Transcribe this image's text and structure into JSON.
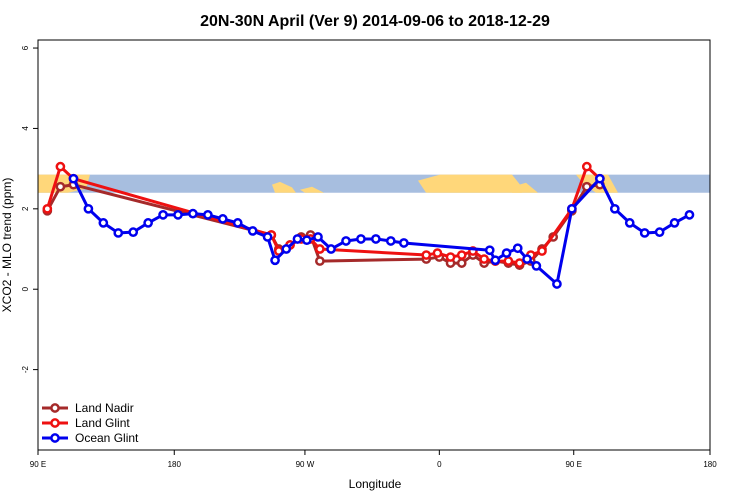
{
  "chart_data": {
    "type": "line",
    "title": "20N-30N April (Ver 9)   2014-09-06 to 2018-12-29",
    "xlabel": "Longitude",
    "ylabel": "XCO2 - MLO trend (ppm)",
    "xlim": [
      -90,
      270
    ],
    "ylim": [
      -4,
      6.2
    ],
    "x_ticks": [
      {
        "value": -90,
        "label": "90 E"
      },
      {
        "value": -17,
        "label": "180"
      },
      {
        "value": 53,
        "label": "90 W"
      },
      {
        "value": 125,
        "label": "0"
      },
      {
        "value": 197,
        "label": "90 E"
      },
      {
        "value": 270,
        "label": "180"
      }
    ],
    "y_ticks": [
      {
        "value": -2,
        "label": "-2"
      },
      {
        "value": 0,
        "label": "0"
      },
      {
        "value": 2,
        "label": "2"
      },
      {
        "value": 4,
        "label": "4"
      },
      {
        "value": 6,
        "label": "6"
      }
    ],
    "legend_position": "bottom-left",
    "map_band": {
      "y_top": 2.85,
      "y_bottom": 2.4,
      "ocean_color": "#A7BEDF",
      "land_color": "#FFD77A"
    },
    "series": [
      {
        "name": "Land Nadir",
        "color": "#A52A2A",
        "points": [
          [
            -85,
            1.95
          ],
          [
            -78,
            2.55
          ],
          [
            -71,
            2.6
          ],
          [
            35,
            1.35
          ],
          [
            39,
            1.0
          ],
          [
            45,
            1.1
          ],
          [
            51,
            1.3
          ],
          [
            56,
            1.35
          ],
          [
            61,
            0.7
          ],
          [
            118,
            0.75
          ],
          [
            125,
            0.8
          ],
          [
            131,
            0.65
          ],
          [
            137,
            0.65
          ],
          [
            143,
            0.85
          ],
          [
            149,
            0.65
          ],
          [
            155,
            0.7
          ],
          [
            162,
            0.65
          ],
          [
            168,
            0.6
          ],
          [
            174,
            0.7
          ],
          [
            180,
            1.0
          ],
          [
            186,
            1.3
          ],
          [
            196,
            1.95
          ],
          [
            204,
            2.55
          ],
          [
            211,
            2.6
          ]
        ]
      },
      {
        "name": "Land Glint",
        "color": "#EE1111",
        "points": [
          [
            -85,
            2.0
          ],
          [
            -78,
            3.05
          ],
          [
            -71,
            2.75
          ],
          [
            35,
            1.35
          ],
          [
            39,
            0.95
          ],
          [
            45,
            1.1
          ],
          [
            51,
            1.25
          ],
          [
            56,
            1.25
          ],
          [
            61,
            1.0
          ],
          [
            118,
            0.85
          ],
          [
            124,
            0.9
          ],
          [
            131,
            0.8
          ],
          [
            137,
            0.85
          ],
          [
            143,
            0.95
          ],
          [
            149,
            0.75
          ],
          [
            155,
            0.7
          ],
          [
            162,
            0.7
          ],
          [
            168,
            0.65
          ],
          [
            174,
            0.85
          ],
          [
            180,
            0.95
          ],
          [
            196,
            2.0
          ],
          [
            204,
            3.05
          ],
          [
            211,
            2.75
          ]
        ]
      },
      {
        "name": "Ocean Glint",
        "color": "#0000EE",
        "points": [
          [
            -71,
            2.75
          ],
          [
            -63,
            2.0
          ],
          [
            -55,
            1.65
          ],
          [
            -47,
            1.4
          ],
          [
            -39,
            1.42
          ],
          [
            -31,
            1.65
          ],
          [
            -23,
            1.85
          ],
          [
            -15,
            1.85
          ],
          [
            -7,
            1.88
          ],
          [
            1,
            1.85
          ],
          [
            9,
            1.75
          ],
          [
            17,
            1.65
          ],
          [
            25,
            1.45
          ],
          [
            33,
            1.3
          ],
          [
            37,
            0.72
          ],
          [
            43,
            1.0
          ],
          [
            49,
            1.25
          ],
          [
            54,
            1.22
          ],
          [
            60,
            1.3
          ],
          [
            67,
            1.0
          ],
          [
            75,
            1.2
          ],
          [
            83,
            1.25
          ],
          [
            91,
            1.25
          ],
          [
            99,
            1.2
          ],
          [
            106,
            1.15
          ],
          [
            152,
            0.97
          ],
          [
            155,
            0.72
          ],
          [
            161,
            0.9
          ],
          [
            167,
            1.02
          ],
          [
            172,
            0.75
          ],
          [
            177,
            0.58
          ],
          [
            188,
            0.13
          ],
          [
            196,
            2.0
          ],
          [
            211,
            2.75
          ],
          [
            219,
            2.0
          ],
          [
            227,
            1.65
          ],
          [
            235,
            1.4
          ],
          [
            243,
            1.42
          ],
          [
            251,
            1.65
          ],
          [
            259,
            1.85
          ]
        ]
      }
    ]
  }
}
